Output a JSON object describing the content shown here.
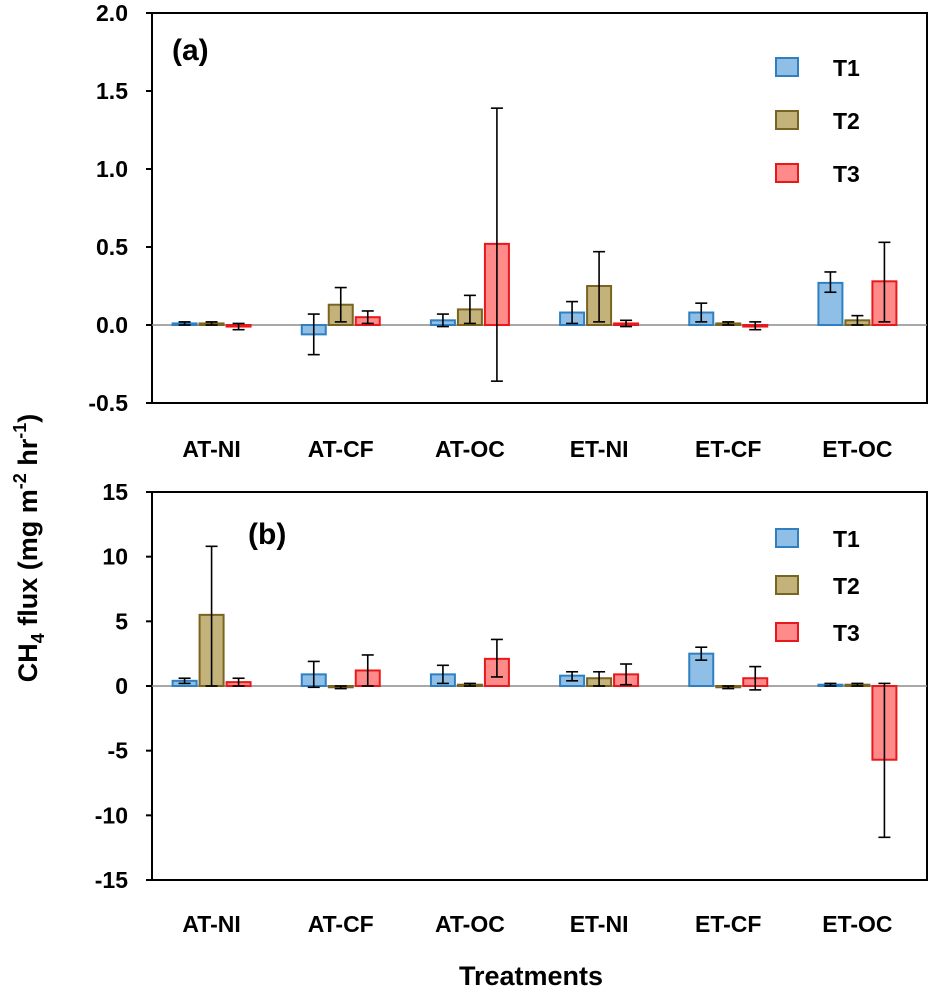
{
  "figure": {
    "ylabel_main": "CH",
    "ylabel_sub": "4",
    "ylabel_mid": " flux (mg m",
    "ylabel_sup1": "-2",
    "ylabel_mid2": " hr",
    "ylabel_sup2": "-1",
    "ylabel_end": ")",
    "xlabel": "Treatments"
  },
  "colors": {
    "T1_fill": "#8fbfe6",
    "T1_stroke": "#2f7fc1",
    "T2_fill": "#c3b27a",
    "T2_stroke": "#7a6421",
    "T3_fill": "#ff8a8a",
    "T3_stroke": "#e8191c"
  },
  "chart_data": [
    {
      "type": "bar",
      "panel_label": "(a)",
      "categories": [
        "AT-NI",
        "AT-CF",
        "AT-OC",
        "ET-NI",
        "ET-CF",
        "ET-OC"
      ],
      "ylim": [
        -0.5,
        2.0
      ],
      "yticks": [
        -0.5,
        0.0,
        0.5,
        1.0,
        1.5,
        2.0
      ],
      "ytick_labels": [
        "-0.5",
        "0.0",
        "0.5",
        "1.0",
        "1.5",
        "2.0"
      ],
      "legend_position": "top-right",
      "series": [
        {
          "name": "T1",
          "values": [
            0.01,
            -0.06,
            0.03,
            0.08,
            0.08,
            0.27
          ],
          "err_low": [
            0.0,
            -0.19,
            -0.01,
            0.01,
            0.02,
            0.21
          ],
          "err_high": [
            0.02,
            0.07,
            0.07,
            0.15,
            0.14,
            0.34
          ]
        },
        {
          "name": "T2",
          "values": [
            0.01,
            0.13,
            0.1,
            0.25,
            0.01,
            0.03
          ],
          "err_low": [
            0.0,
            0.02,
            0.01,
            0.02,
            0.0,
            0.0
          ],
          "err_high": [
            0.02,
            0.24,
            0.19,
            0.47,
            0.02,
            0.06
          ]
        },
        {
          "name": "T3",
          "values": [
            -0.01,
            0.05,
            0.52,
            0.01,
            -0.01,
            0.28
          ],
          "err_low": [
            -0.03,
            0.01,
            -0.36,
            -0.01,
            -0.03,
            0.02
          ],
          "err_high": [
            0.01,
            0.09,
            1.39,
            0.03,
            0.02,
            0.53
          ]
        }
      ]
    },
    {
      "type": "bar",
      "panel_label": "(b)",
      "categories": [
        "AT-NI",
        "AT-CF",
        "AT-OC",
        "ET-NI",
        "ET-CF",
        "ET-OC"
      ],
      "ylim": [
        -15,
        15
      ],
      "yticks": [
        -15,
        -10,
        -5,
        0,
        5,
        10,
        15
      ],
      "ytick_labels": [
        "-15",
        "-10",
        "-5",
        "0",
        "5",
        "10",
        "15"
      ],
      "legend_position": "top-right",
      "series": [
        {
          "name": "T1",
          "values": [
            0.4,
            0.9,
            0.9,
            0.8,
            2.5,
            0.1
          ],
          "err_low": [
            0.2,
            -0.1,
            0.2,
            0.4,
            2.0,
            0.0
          ],
          "err_high": [
            0.6,
            1.9,
            1.6,
            1.1,
            3.0,
            0.2
          ]
        },
        {
          "name": "T2",
          "values": [
            5.5,
            -0.1,
            0.1,
            0.6,
            -0.1,
            0.1
          ],
          "err_low": [
            0.0,
            -0.2,
            0.0,
            0.0,
            -0.2,
            0.0
          ],
          "err_high": [
            10.8,
            0.0,
            0.2,
            1.1,
            0.0,
            0.2
          ]
        },
        {
          "name": "T3",
          "values": [
            0.3,
            1.2,
            2.1,
            0.9,
            0.6,
            -5.7
          ],
          "err_low": [
            0.0,
            0.0,
            0.7,
            0.1,
            -0.3,
            -11.7
          ],
          "err_high": [
            0.6,
            2.4,
            3.6,
            1.7,
            1.5,
            0.2
          ]
        }
      ]
    }
  ]
}
